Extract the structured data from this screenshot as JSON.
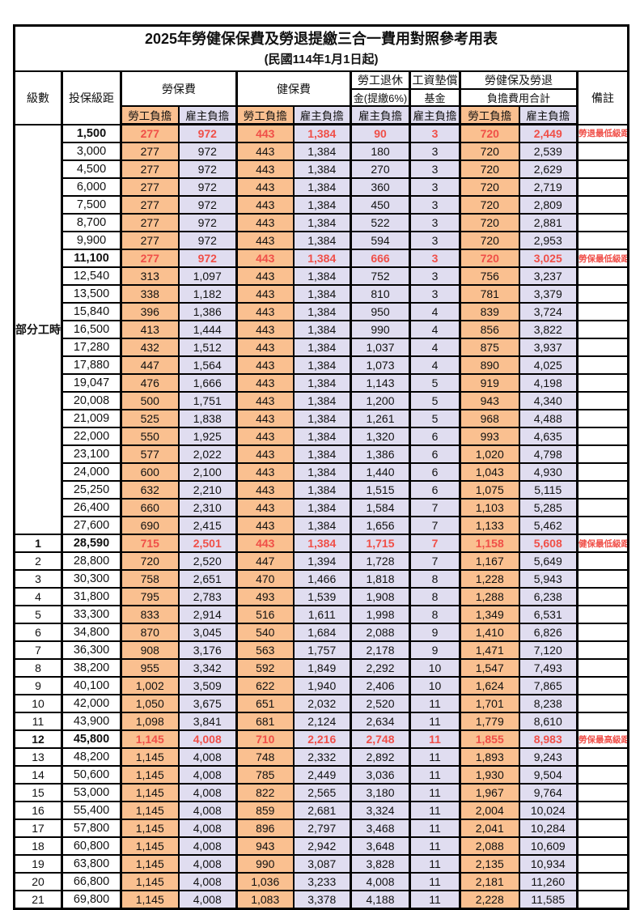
{
  "title": "2025年勞健保保費及勞退提繳三合一費用對照參考用表",
  "subtitle": "(民國114年1月1日起)",
  "header": {
    "level": "級數",
    "bracket": "投保級距",
    "labor_group": "勞保費",
    "health_group": "健保費",
    "pension_line1": "勞工退休",
    "pension_line2": "金(提繳6%)",
    "wage_line1": "工資墊償",
    "wage_line2": "基金",
    "total_line1": "勞健保及勞退",
    "total_line2": "負擔費用合計",
    "remark": "備註",
    "employee": "勞工負擔",
    "employer": "雇主負擔"
  },
  "part_time": {
    "label": "部分工時",
    "rowspan": 23
  },
  "colors": {
    "employee_fill": "#FAC090",
    "employer_fill": "#E0DDF0",
    "highlight_red": "#F04F48",
    "border": "#000000"
  },
  "rows": [
    {
      "level": "",
      "bracket": "1,500",
      "labor_emp": "277",
      "labor_er": "972",
      "health_emp": "443",
      "health_er": "1,384",
      "pension": "90",
      "wage": "3",
      "total_emp": "720",
      "total_er": "2,449",
      "remark": "勞退最低級距",
      "red": true
    },
    {
      "level": "",
      "bracket": "3,000",
      "labor_emp": "277",
      "labor_er": "972",
      "health_emp": "443",
      "health_er": "1,384",
      "pension": "180",
      "wage": "3",
      "total_emp": "720",
      "total_er": "2,539",
      "remark": "",
      "red": false
    },
    {
      "level": "",
      "bracket": "4,500",
      "labor_emp": "277",
      "labor_er": "972",
      "health_emp": "443",
      "health_er": "1,384",
      "pension": "270",
      "wage": "3",
      "total_emp": "720",
      "total_er": "2,629",
      "remark": "",
      "red": false
    },
    {
      "level": "",
      "bracket": "6,000",
      "labor_emp": "277",
      "labor_er": "972",
      "health_emp": "443",
      "health_er": "1,384",
      "pension": "360",
      "wage": "3",
      "total_emp": "720",
      "total_er": "2,719",
      "remark": "",
      "red": false
    },
    {
      "level": "",
      "bracket": "7,500",
      "labor_emp": "277",
      "labor_er": "972",
      "health_emp": "443",
      "health_er": "1,384",
      "pension": "450",
      "wage": "3",
      "total_emp": "720",
      "total_er": "2,809",
      "remark": "",
      "red": false
    },
    {
      "level": "",
      "bracket": "8,700",
      "labor_emp": "277",
      "labor_er": "972",
      "health_emp": "443",
      "health_er": "1,384",
      "pension": "522",
      "wage": "3",
      "total_emp": "720",
      "total_er": "2,881",
      "remark": "",
      "red": false
    },
    {
      "level": "",
      "bracket": "9,900",
      "labor_emp": "277",
      "labor_er": "972",
      "health_emp": "443",
      "health_er": "1,384",
      "pension": "594",
      "wage": "3",
      "total_emp": "720",
      "total_er": "2,953",
      "remark": "",
      "red": false
    },
    {
      "level": "",
      "bracket": "11,100",
      "labor_emp": "277",
      "labor_er": "972",
      "health_emp": "443",
      "health_er": "1,384",
      "pension": "666",
      "wage": "3",
      "total_emp": "720",
      "total_er": "3,025",
      "remark": "勞保最低級距",
      "red": true
    },
    {
      "level": "",
      "bracket": "12,540",
      "labor_emp": "313",
      "labor_er": "1,097",
      "health_emp": "443",
      "health_er": "1,384",
      "pension": "752",
      "wage": "3",
      "total_emp": "756",
      "total_er": "3,237",
      "remark": "",
      "red": false
    },
    {
      "level": "",
      "bracket": "13,500",
      "labor_emp": "338",
      "labor_er": "1,182",
      "health_emp": "443",
      "health_er": "1,384",
      "pension": "810",
      "wage": "3",
      "total_emp": "781",
      "total_er": "3,379",
      "remark": "",
      "red": false
    },
    {
      "level": "",
      "bracket": "15,840",
      "labor_emp": "396",
      "labor_er": "1,386",
      "health_emp": "443",
      "health_er": "1,384",
      "pension": "950",
      "wage": "4",
      "total_emp": "839",
      "total_er": "3,724",
      "remark": "",
      "red": false
    },
    {
      "level": "",
      "bracket": "16,500",
      "labor_emp": "413",
      "labor_er": "1,444",
      "health_emp": "443",
      "health_er": "1,384",
      "pension": "990",
      "wage": "4",
      "total_emp": "856",
      "total_er": "3,822",
      "remark": "",
      "red": false
    },
    {
      "level": "",
      "bracket": "17,280",
      "labor_emp": "432",
      "labor_er": "1,512",
      "health_emp": "443",
      "health_er": "1,384",
      "pension": "1,037",
      "wage": "4",
      "total_emp": "875",
      "total_er": "3,937",
      "remark": "",
      "red": false
    },
    {
      "level": "",
      "bracket": "17,880",
      "labor_emp": "447",
      "labor_er": "1,564",
      "health_emp": "443",
      "health_er": "1,384",
      "pension": "1,073",
      "wage": "4",
      "total_emp": "890",
      "total_er": "4,025",
      "remark": "",
      "red": false
    },
    {
      "level": "",
      "bracket": "19,047",
      "labor_emp": "476",
      "labor_er": "1,666",
      "health_emp": "443",
      "health_er": "1,384",
      "pension": "1,143",
      "wage": "5",
      "total_emp": "919",
      "total_er": "4,198",
      "remark": "",
      "red": false
    },
    {
      "level": "",
      "bracket": "20,008",
      "labor_emp": "500",
      "labor_er": "1,751",
      "health_emp": "443",
      "health_er": "1,384",
      "pension": "1,200",
      "wage": "5",
      "total_emp": "943",
      "total_er": "4,340",
      "remark": "",
      "red": false
    },
    {
      "level": "",
      "bracket": "21,009",
      "labor_emp": "525",
      "labor_er": "1,838",
      "health_emp": "443",
      "health_er": "1,384",
      "pension": "1,261",
      "wage": "5",
      "total_emp": "968",
      "total_er": "4,488",
      "remark": "",
      "red": false
    },
    {
      "level": "",
      "bracket": "22,000",
      "labor_emp": "550",
      "labor_er": "1,925",
      "health_emp": "443",
      "health_er": "1,384",
      "pension": "1,320",
      "wage": "6",
      "total_emp": "993",
      "total_er": "4,635",
      "remark": "",
      "red": false
    },
    {
      "level": "",
      "bracket": "23,100",
      "labor_emp": "577",
      "labor_er": "2,022",
      "health_emp": "443",
      "health_er": "1,384",
      "pension": "1,386",
      "wage": "6",
      "total_emp": "1,020",
      "total_er": "4,798",
      "remark": "",
      "red": false
    },
    {
      "level": "",
      "bracket": "24,000",
      "labor_emp": "600",
      "labor_er": "2,100",
      "health_emp": "443",
      "health_er": "1,384",
      "pension": "1,440",
      "wage": "6",
      "total_emp": "1,043",
      "total_er": "4,930",
      "remark": "",
      "red": false
    },
    {
      "level": "",
      "bracket": "25,250",
      "labor_emp": "632",
      "labor_er": "2,210",
      "health_emp": "443",
      "health_er": "1,384",
      "pension": "1,515",
      "wage": "6",
      "total_emp": "1,075",
      "total_er": "5,115",
      "remark": "",
      "red": false
    },
    {
      "level": "",
      "bracket": "26,400",
      "labor_emp": "660",
      "labor_er": "2,310",
      "health_emp": "443",
      "health_er": "1,384",
      "pension": "1,584",
      "wage": "7",
      "total_emp": "1,103",
      "total_er": "5,285",
      "remark": "",
      "red": false
    },
    {
      "level": "",
      "bracket": "27,600",
      "labor_emp": "690",
      "labor_er": "2,415",
      "health_emp": "443",
      "health_er": "1,384",
      "pension": "1,656",
      "wage": "7",
      "total_emp": "1,133",
      "total_er": "5,462",
      "remark": "",
      "red": false
    },
    {
      "level": "1",
      "bracket": "28,590",
      "labor_emp": "715",
      "labor_er": "2,501",
      "health_emp": "443",
      "health_er": "1,384",
      "pension": "1,715",
      "wage": "7",
      "total_emp": "1,158",
      "total_er": "5,608",
      "remark": "健保最低級距",
      "red": true
    },
    {
      "level": "2",
      "bracket": "28,800",
      "labor_emp": "720",
      "labor_er": "2,520",
      "health_emp": "447",
      "health_er": "1,394",
      "pension": "1,728",
      "wage": "7",
      "total_emp": "1,167",
      "total_er": "5,649",
      "remark": "",
      "red": false
    },
    {
      "level": "3",
      "bracket": "30,300",
      "labor_emp": "758",
      "labor_er": "2,651",
      "health_emp": "470",
      "health_er": "1,466",
      "pension": "1,818",
      "wage": "8",
      "total_emp": "1,228",
      "total_er": "5,943",
      "remark": "",
      "red": false
    },
    {
      "level": "4",
      "bracket": "31,800",
      "labor_emp": "795",
      "labor_er": "2,783",
      "health_emp": "493",
      "health_er": "1,539",
      "pension": "1,908",
      "wage": "8",
      "total_emp": "1,288",
      "total_er": "6,238",
      "remark": "",
      "red": false
    },
    {
      "level": "5",
      "bracket": "33,300",
      "labor_emp": "833",
      "labor_er": "2,914",
      "health_emp": "516",
      "health_er": "1,611",
      "pension": "1,998",
      "wage": "8",
      "total_emp": "1,349",
      "total_er": "6,531",
      "remark": "",
      "red": false
    },
    {
      "level": "6",
      "bracket": "34,800",
      "labor_emp": "870",
      "labor_er": "3,045",
      "health_emp": "540",
      "health_er": "1,684",
      "pension": "2,088",
      "wage": "9",
      "total_emp": "1,410",
      "total_er": "6,826",
      "remark": "",
      "red": false
    },
    {
      "level": "7",
      "bracket": "36,300",
      "labor_emp": "908",
      "labor_er": "3,176",
      "health_emp": "563",
      "health_er": "1,757",
      "pension": "2,178",
      "wage": "9",
      "total_emp": "1,471",
      "total_er": "7,120",
      "remark": "",
      "red": false
    },
    {
      "level": "8",
      "bracket": "38,200",
      "labor_emp": "955",
      "labor_er": "3,342",
      "health_emp": "592",
      "health_er": "1,849",
      "pension": "2,292",
      "wage": "10",
      "total_emp": "1,547",
      "total_er": "7,493",
      "remark": "",
      "red": false
    },
    {
      "level": "9",
      "bracket": "40,100",
      "labor_emp": "1,002",
      "labor_er": "3,509",
      "health_emp": "622",
      "health_er": "1,940",
      "pension": "2,406",
      "wage": "10",
      "total_emp": "1,624",
      "total_er": "7,865",
      "remark": "",
      "red": false
    },
    {
      "level": "10",
      "bracket": "42,000",
      "labor_emp": "1,050",
      "labor_er": "3,675",
      "health_emp": "651",
      "health_er": "2,032",
      "pension": "2,520",
      "wage": "11",
      "total_emp": "1,701",
      "total_er": "8,238",
      "remark": "",
      "red": false
    },
    {
      "level": "11",
      "bracket": "43,900",
      "labor_emp": "1,098",
      "labor_er": "3,841",
      "health_emp": "681",
      "health_er": "2,124",
      "pension": "2,634",
      "wage": "11",
      "total_emp": "1,779",
      "total_er": "8,610",
      "remark": "",
      "red": false
    },
    {
      "level": "12",
      "bracket": "45,800",
      "labor_emp": "1,145",
      "labor_er": "4,008",
      "health_emp": "710",
      "health_er": "2,216",
      "pension": "2,748",
      "wage": "11",
      "total_emp": "1,855",
      "total_er": "8,983",
      "remark": "勞保最高級距",
      "red": true
    },
    {
      "level": "13",
      "bracket": "48,200",
      "labor_emp": "1,145",
      "labor_er": "4,008",
      "health_emp": "748",
      "health_er": "2,332",
      "pension": "2,892",
      "wage": "11",
      "total_emp": "1,893",
      "total_er": "9,243",
      "remark": "",
      "red": false
    },
    {
      "level": "14",
      "bracket": "50,600",
      "labor_emp": "1,145",
      "labor_er": "4,008",
      "health_emp": "785",
      "health_er": "2,449",
      "pension": "3,036",
      "wage": "11",
      "total_emp": "1,930",
      "total_er": "9,504",
      "remark": "",
      "red": false
    },
    {
      "level": "15",
      "bracket": "53,000",
      "labor_emp": "1,145",
      "labor_er": "4,008",
      "health_emp": "822",
      "health_er": "2,565",
      "pension": "3,180",
      "wage": "11",
      "total_emp": "1,967",
      "total_er": "9,764",
      "remark": "",
      "red": false
    },
    {
      "level": "16",
      "bracket": "55,400",
      "labor_emp": "1,145",
      "labor_er": "4,008",
      "health_emp": "859",
      "health_er": "2,681",
      "pension": "3,324",
      "wage": "11",
      "total_emp": "2,004",
      "total_er": "10,024",
      "remark": "",
      "red": false
    },
    {
      "level": "17",
      "bracket": "57,800",
      "labor_emp": "1,145",
      "labor_er": "4,008",
      "health_emp": "896",
      "health_er": "2,797",
      "pension": "3,468",
      "wage": "11",
      "total_emp": "2,041",
      "total_er": "10,284",
      "remark": "",
      "red": false
    },
    {
      "level": "18",
      "bracket": "60,800",
      "labor_emp": "1,145",
      "labor_er": "4,008",
      "health_emp": "943",
      "health_er": "2,942",
      "pension": "3,648",
      "wage": "11",
      "total_emp": "2,088",
      "total_er": "10,609",
      "remark": "",
      "red": false
    },
    {
      "level": "19",
      "bracket": "63,800",
      "labor_emp": "1,145",
      "labor_er": "4,008",
      "health_emp": "990",
      "health_er": "3,087",
      "pension": "3,828",
      "wage": "11",
      "total_emp": "2,135",
      "total_er": "10,934",
      "remark": "",
      "red": false
    },
    {
      "level": "20",
      "bracket": "66,800",
      "labor_emp": "1,145",
      "labor_er": "4,008",
      "health_emp": "1,036",
      "health_er": "3,233",
      "pension": "4,008",
      "wage": "11",
      "total_emp": "2,181",
      "total_er": "11,260",
      "remark": "",
      "red": false
    },
    {
      "level": "21",
      "bracket": "69,800",
      "labor_emp": "1,145",
      "labor_er": "4,008",
      "health_emp": "1,083",
      "health_er": "3,378",
      "pension": "4,188",
      "wage": "11",
      "total_emp": "2,228",
      "total_er": "11,585",
      "remark": "",
      "red": false
    }
  ]
}
